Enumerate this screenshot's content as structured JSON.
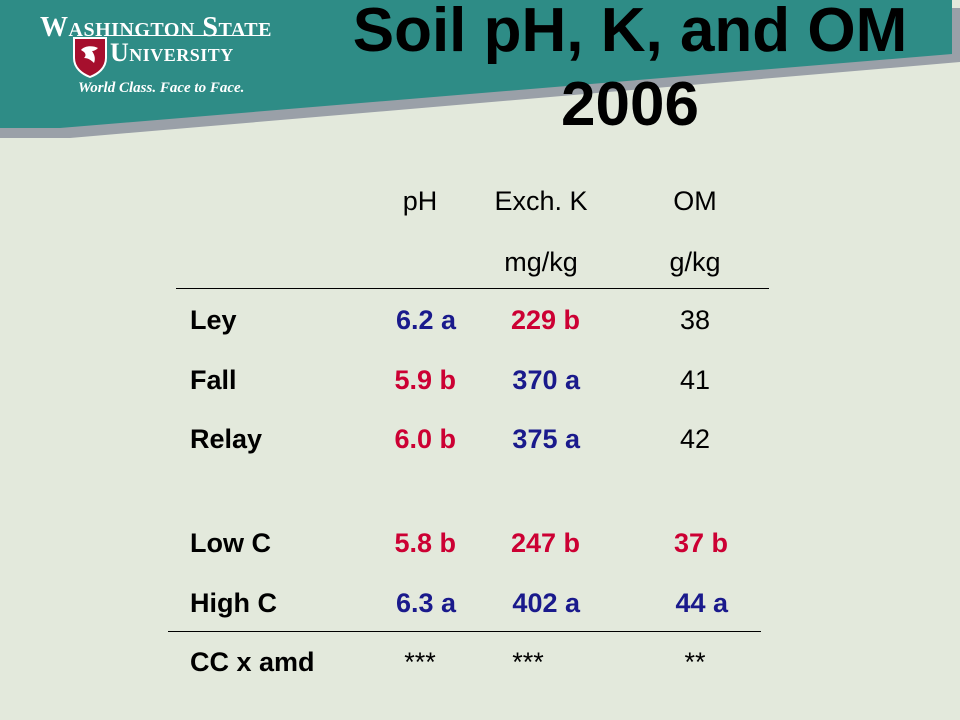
{
  "header": {
    "logo_line1": "Washington State",
    "logo_line2": "University",
    "logo_tagline": "World Class. Face to Face."
  },
  "title": {
    "line1": "Soil pH, K, and OM",
    "line2": "2006"
  },
  "table": {
    "columns": [
      {
        "label": "pH",
        "unit": ""
      },
      {
        "label": "Exch. K",
        "unit": "mg/kg"
      },
      {
        "label": "OM",
        "unit": "g/kg"
      }
    ],
    "rows": [
      {
        "label": "Ley",
        "values": [
          "6.2 a",
          "229 b",
          "38"
        ]
      },
      {
        "label": "Fall",
        "values": [
          "5.9 b",
          "370 a",
          "41"
        ]
      },
      {
        "label": "Relay",
        "values": [
          "6.0 b",
          "375 a",
          "42"
        ]
      },
      {
        "label": "Low C",
        "values": [
          "5.8 b",
          "247 b",
          "37 b"
        ]
      },
      {
        "label": "High C",
        "values": [
          "6.3 a",
          "402 a",
          "44 a"
        ]
      },
      {
        "label": "CC x amd",
        "values": [
          "***",
          "***",
          "**"
        ]
      }
    ]
  },
  "colors": {
    "banner": "#2e8c86",
    "blue_value": "#1a1a8c",
    "red_value": "#cc0033",
    "background": "#e3e9dc"
  }
}
